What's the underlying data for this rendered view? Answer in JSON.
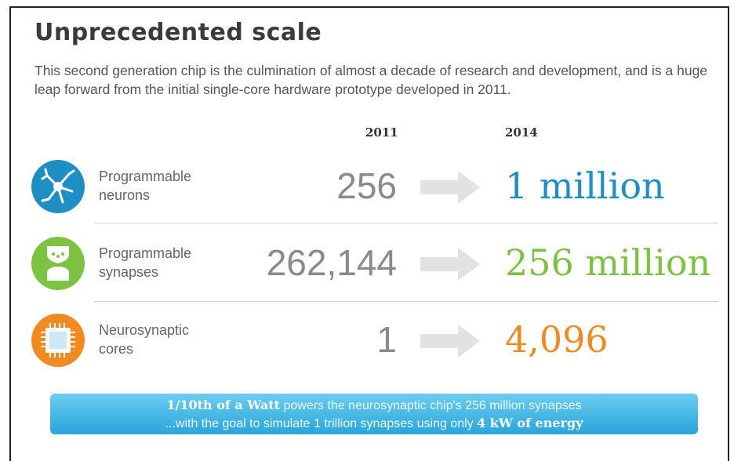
{
  "title": "Unprecedented scale",
  "subtitle": "This second generation chip is the culmination of almost a decade of research and development, and is a huge leap forward from the initial single-core hardware prototype developed in 2011.",
  "columns": {
    "old": "2011",
    "new": "2014"
  },
  "rows": [
    {
      "label_line1": "Programmable",
      "label_line2": "neurons",
      "old": "256",
      "new": "1 million",
      "color": "#1f8ec4",
      "icon": "neuron-icon"
    },
    {
      "label_line1": "Programmable",
      "label_line2": "synapses",
      "old": "262,144",
      "new": "256 million",
      "color": "#7cc243",
      "icon": "synapse-icon"
    },
    {
      "label_line1": "Neurosynaptic",
      "label_line2": "cores",
      "old": "1",
      "new": "4,096",
      "color": "#f18a21",
      "icon": "chip-core-icon"
    }
  ],
  "banner": {
    "line1_bold": "1/10th of a Watt",
    "line1_rest": " powers the neurosynaptic chip's 256 million synapses",
    "line2_rest": "...with the goal to simulate 1 trillion synapses using only ",
    "line2_bold": "4 kW of energy"
  }
}
